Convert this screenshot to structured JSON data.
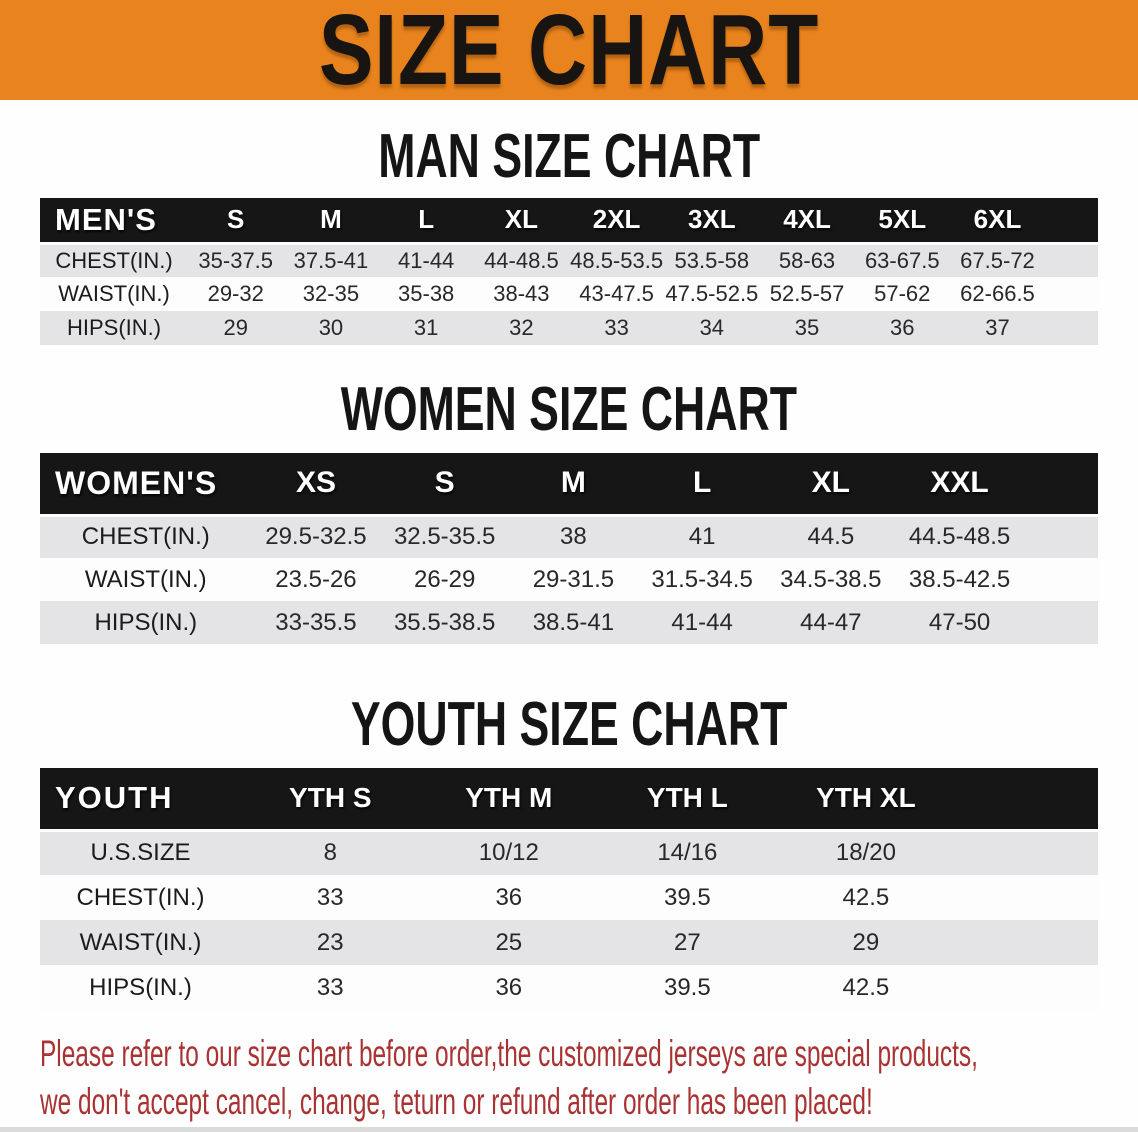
{
  "banner": {
    "title": "SIZE CHART"
  },
  "sections": [
    {
      "heading": "MAN SIZE CHART",
      "table": {
        "header_label": "MEN'S",
        "columns": [
          "S",
          "M",
          "L",
          "XL",
          "2XL",
          "3XL",
          "4XL",
          "5XL",
          "6XL"
        ],
        "rows": [
          {
            "label": "CHEST(IN.)",
            "values": [
              "35-37.5",
              "37.5-41",
              "41-44",
              "44-48.5",
              "48.5-53.5",
              "53.5-58",
              "58-63",
              "63-67.5",
              "67.5-72"
            ]
          },
          {
            "label": "WAIST(IN.)",
            "values": [
              "29-32",
              "32-35",
              "35-38",
              "38-43",
              "43-47.5",
              "47.5-52.5",
              "52.5-57",
              "57-62",
              "62-66.5"
            ]
          },
          {
            "label": "HIPS(IN.)",
            "values": [
              "29",
              "30",
              "31",
              "32",
              "33",
              "34",
              "35",
              "36",
              "37"
            ]
          }
        ]
      }
    },
    {
      "heading": "WOMEN SIZE CHART",
      "table": {
        "header_label": "WOMEN'S",
        "columns": [
          "XS",
          "S",
          "M",
          "L",
          "XL",
          "XXL"
        ],
        "rows": [
          {
            "label": "CHEST(IN.)",
            "values": [
              "29.5-32.5",
              "32.5-35.5",
              "38",
              "41",
              "44.5",
              "44.5-48.5"
            ]
          },
          {
            "label": "WAIST(IN.)",
            "values": [
              "23.5-26",
              "26-29",
              "29-31.5",
              "31.5-34.5",
              "34.5-38.5",
              "38.5-42.5"
            ]
          },
          {
            "label": "HIPS(IN.)",
            "values": [
              "33-35.5",
              "35.5-38.5",
              "38.5-41",
              "41-44",
              "44-47",
              "47-50"
            ]
          }
        ]
      }
    },
    {
      "heading": "YOUTH SIZE CHART",
      "table": {
        "header_label": "YOUTH",
        "columns": [
          "YTH S",
          "YTH M",
          "YTH L",
          "YTH XL"
        ],
        "rows": [
          {
            "label": "U.S.SIZE",
            "values": [
              "8",
              "10/12",
              "14/16",
              "18/20"
            ]
          },
          {
            "label": "CHEST(IN.)",
            "values": [
              "33",
              "36",
              "39.5",
              "42.5"
            ]
          },
          {
            "label": "WAIST(IN.)",
            "values": [
              "23",
              "25",
              "27",
              "29"
            ]
          },
          {
            "label": "HIPS(IN.)",
            "values": [
              "33",
              "36",
              "39.5",
              "42.5"
            ]
          }
        ]
      }
    }
  ],
  "disclaimer": {
    "line1": "Please refer to our size chart before order,the customized jerseys are special products,",
    "line2": "we don't accept cancel, change, teturn or refund after order has been placed!"
  },
  "colors": {
    "banner_bg": "#E8831D",
    "banner_text": "#181411",
    "table_header_bg": "#161616",
    "table_header_text": "#FFFFFF",
    "row_gray": "#E4E4E6",
    "row_white": "#FDFDFD",
    "disclaimer_red": "#A93232"
  }
}
